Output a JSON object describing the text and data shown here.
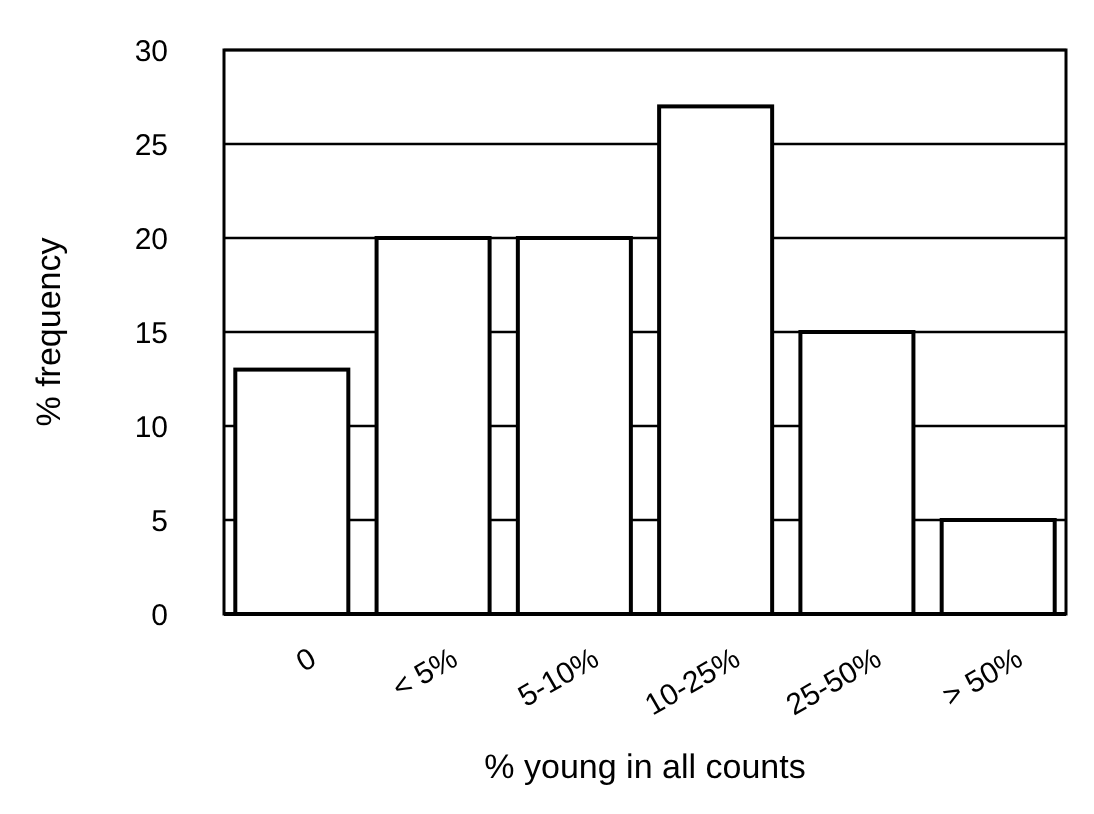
{
  "chart_data": {
    "type": "bar",
    "xlabel": "% young in all counts",
    "ylabel": "% frequency",
    "categories": [
      "0",
      "< 5%",
      "5-10%",
      "10-25%",
      "25-50%",
      "> 50%"
    ],
    "values": [
      13,
      20,
      20,
      27,
      15,
      5
    ],
    "color": "#ffffff",
    "ylim": [
      0,
      30
    ],
    "yticks": [
      0,
      5,
      10,
      15,
      20,
      25,
      30
    ],
    "grid": "y"
  }
}
